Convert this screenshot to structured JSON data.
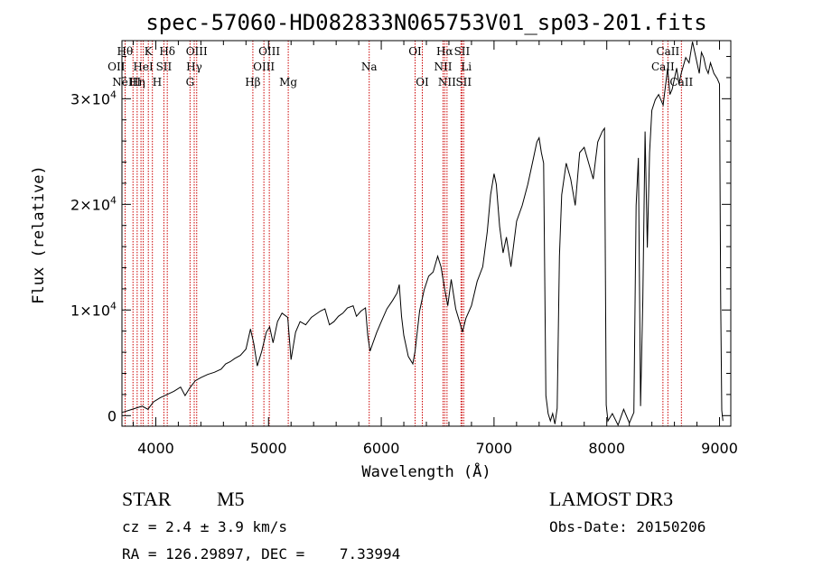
{
  "chart_data": {
    "type": "line",
    "title": "spec-57060-HD082833N065753V01_sp03-201.fits",
    "xlabel": "Wavelength (Å)",
    "ylabel": "Flux (relative)",
    "xlim": [
      3700,
      9100
    ],
    "ylim": [
      -1000,
      35500
    ],
    "x_ticks": [
      {
        "value": 4000,
        "label": "4000"
      },
      {
        "value": 5000,
        "label": "5000"
      },
      {
        "value": 6000,
        "label": "6000"
      },
      {
        "value": 7000,
        "label": "7000"
      },
      {
        "value": 8000,
        "label": "8000"
      },
      {
        "value": 9000,
        "label": "9000"
      }
    ],
    "y_ticks": [
      {
        "value": 0,
        "base": "0",
        "exp": ""
      },
      {
        "value": 10000,
        "base": "1×10",
        "exp": "4"
      },
      {
        "value": 20000,
        "base": "2×10",
        "exp": "4"
      },
      {
        "value": 30000,
        "base": "3×10",
        "exp": "4"
      }
    ],
    "series": [
      {
        "name": "flux",
        "color": "#000000",
        "points": [
          [
            3700,
            300
          ],
          [
            3760,
            500
          ],
          [
            3820,
            700
          ],
          [
            3880,
            900
          ],
          [
            3930,
            600
          ],
          [
            3980,
            1300
          ],
          [
            4040,
            1700
          ],
          [
            4100,
            2000
          ],
          [
            4160,
            2300
          ],
          [
            4220,
            2700
          ],
          [
            4260,
            1900
          ],
          [
            4300,
            2600
          ],
          [
            4350,
            3300
          ],
          [
            4400,
            3600
          ],
          [
            4460,
            3900
          ],
          [
            4520,
            4100
          ],
          [
            4580,
            4400
          ],
          [
            4620,
            4900
          ],
          [
            4660,
            5100
          ],
          [
            4700,
            5400
          ],
          [
            4750,
            5700
          ],
          [
            4800,
            6300
          ],
          [
            4840,
            8200
          ],
          [
            4870,
            6800
          ],
          [
            4900,
            4700
          ],
          [
            4940,
            6100
          ],
          [
            4980,
            7900
          ],
          [
            5010,
            8400
          ],
          [
            5040,
            6900
          ],
          [
            5080,
            8900
          ],
          [
            5120,
            9700
          ],
          [
            5170,
            9300
          ],
          [
            5200,
            5300
          ],
          [
            5240,
            7900
          ],
          [
            5280,
            8900
          ],
          [
            5330,
            8600
          ],
          [
            5380,
            9300
          ],
          [
            5420,
            9600
          ],
          [
            5460,
            9900
          ],
          [
            5500,
            10100
          ],
          [
            5540,
            8600
          ],
          [
            5580,
            8900
          ],
          [
            5620,
            9400
          ],
          [
            5660,
            9700
          ],
          [
            5700,
            10200
          ],
          [
            5750,
            10400
          ],
          [
            5780,
            9400
          ],
          [
            5820,
            9900
          ],
          [
            5860,
            10200
          ],
          [
            5880,
            7600
          ],
          [
            5900,
            6100
          ],
          [
            5920,
            6700
          ],
          [
            5960,
            7900
          ],
          [
            6000,
            8900
          ],
          [
            6050,
            10100
          ],
          [
            6100,
            10900
          ],
          [
            6140,
            11600
          ],
          [
            6160,
            12400
          ],
          [
            6180,
            9400
          ],
          [
            6200,
            7600
          ],
          [
            6240,
            5600
          ],
          [
            6280,
            4900
          ],
          [
            6300,
            6100
          ],
          [
            6340,
            9900
          ],
          [
            6380,
            11900
          ],
          [
            6420,
            13200
          ],
          [
            6460,
            13600
          ],
          [
            6500,
            15100
          ],
          [
            6530,
            14100
          ],
          [
            6560,
            12100
          ],
          [
            6590,
            10400
          ],
          [
            6620,
            12900
          ],
          [
            6660,
            10100
          ],
          [
            6700,
            8700
          ],
          [
            6720,
            7900
          ],
          [
            6750,
            9200
          ],
          [
            6800,
            10400
          ],
          [
            6850,
            12700
          ],
          [
            6900,
            14100
          ],
          [
            6940,
            17400
          ],
          [
            6970,
            20900
          ],
          [
            7000,
            22900
          ],
          [
            7020,
            21900
          ],
          [
            7050,
            17900
          ],
          [
            7080,
            15400
          ],
          [
            7110,
            16900
          ],
          [
            7150,
            14100
          ],
          [
            7200,
            18400
          ],
          [
            7250,
            19900
          ],
          [
            7300,
            21900
          ],
          [
            7350,
            24400
          ],
          [
            7380,
            25900
          ],
          [
            7400,
            26300
          ],
          [
            7420,
            24900
          ],
          [
            7440,
            23900
          ],
          [
            7460,
            1900
          ],
          [
            7480,
            200
          ],
          [
            7500,
            -500
          ],
          [
            7520,
            200
          ],
          [
            7540,
            -800
          ],
          [
            7560,
            700
          ],
          [
            7580,
            15100
          ],
          [
            7600,
            20900
          ],
          [
            7640,
            23900
          ],
          [
            7680,
            22400
          ],
          [
            7720,
            19900
          ],
          [
            7760,
            24900
          ],
          [
            7800,
            25400
          ],
          [
            7840,
            23900
          ],
          [
            7880,
            22400
          ],
          [
            7920,
            25900
          ],
          [
            7960,
            26900
          ],
          [
            7980,
            27200
          ],
          [
            7995,
            1000
          ],
          [
            8010,
            -500
          ],
          [
            8050,
            200
          ],
          [
            8100,
            -900
          ],
          [
            8150,
            600
          ],
          [
            8200,
            -700
          ],
          [
            8240,
            300
          ],
          [
            8260,
            19900
          ],
          [
            8280,
            24400
          ],
          [
            8300,
            900
          ],
          [
            8320,
            10900
          ],
          [
            8340,
            26900
          ],
          [
            8360,
            15900
          ],
          [
            8380,
            24900
          ],
          [
            8400,
            28900
          ],
          [
            8430,
            29900
          ],
          [
            8460,
            30400
          ],
          [
            8500,
            29400
          ],
          [
            8540,
            32900
          ],
          [
            8560,
            30400
          ],
          [
            8580,
            30900
          ],
          [
            8600,
            31900
          ],
          [
            8620,
            32900
          ],
          [
            8640,
            31400
          ],
          [
            8660,
            32400
          ],
          [
            8700,
            33900
          ],
          [
            8730,
            33400
          ],
          [
            8760,
            35400
          ],
          [
            8780,
            34400
          ],
          [
            8800,
            33400
          ],
          [
            8820,
            32400
          ],
          [
            8840,
            34400
          ],
          [
            8860,
            33900
          ],
          [
            8880,
            32900
          ],
          [
            8900,
            32400
          ],
          [
            8920,
            33400
          ],
          [
            8950,
            32400
          ],
          [
            8980,
            31900
          ],
          [
            9000,
            31400
          ],
          [
            9010,
            10900
          ],
          [
            9020,
            500
          ],
          [
            9030,
            -500
          ]
        ]
      }
    ],
    "reference_lines": {
      "color": "#cc0000",
      "lines": [
        {
          "x": 3728,
          "label": "OII",
          "row": 1,
          "anchor": "end"
        },
        {
          "x": 3798,
          "label": "Hθ",
          "row": 0,
          "anchor": "end"
        },
        {
          "x": 3835,
          "label": "Hη",
          "row": 2,
          "anchor": "middle"
        },
        {
          "x": 3869,
          "label": "NeIII",
          "row": 2,
          "anchor": "end"
        },
        {
          "x": 3889,
          "label": "HeI",
          "row": 1,
          "anchor": "middle"
        },
        {
          "x": 3934,
          "label": "K",
          "row": 0,
          "anchor": "middle"
        },
        {
          "x": 3970,
          "label": "H",
          "row": 2,
          "anchor": "start"
        },
        {
          "x": 4072,
          "label": "SII",
          "row": 1,
          "anchor": "middle"
        },
        {
          "x": 4102,
          "label": "Hδ",
          "row": 0,
          "anchor": "middle"
        },
        {
          "x": 4304,
          "label": "G",
          "row": 2,
          "anchor": "middle"
        },
        {
          "x": 4341,
          "label": "Hγ",
          "row": 1,
          "anchor": "middle"
        },
        {
          "x": 4363,
          "label": "OIII",
          "row": 0,
          "anchor": "middle"
        },
        {
          "x": 4861,
          "label": "Hβ",
          "row": 2,
          "anchor": "middle"
        },
        {
          "x": 4959,
          "label": "OIII",
          "row": 1,
          "anchor": "middle"
        },
        {
          "x": 5007,
          "label": "OIII",
          "row": 0,
          "anchor": "middle"
        },
        {
          "x": 5175,
          "label": "Mg",
          "row": 2,
          "anchor": "middle"
        },
        {
          "x": 5893,
          "label": "Na",
          "row": 1,
          "anchor": "middle"
        },
        {
          "x": 6300,
          "label": "OI",
          "row": 0,
          "anchor": "middle"
        },
        {
          "x": 6364,
          "label": "OI",
          "row": 2,
          "anchor": "middle"
        },
        {
          "x": 6548,
          "label": "NII",
          "row": 1,
          "anchor": "middle"
        },
        {
          "x": 6563,
          "label": "Hα",
          "row": 0,
          "anchor": "middle"
        },
        {
          "x": 6583,
          "label": "NII",
          "row": 2,
          "anchor": "middle"
        },
        {
          "x": 6707,
          "label": "Li",
          "row": 1,
          "anchor": "start"
        },
        {
          "x": 6716,
          "label": "SII",
          "row": 0,
          "anchor": "middle"
        },
        {
          "x": 6731,
          "label": "SII",
          "row": 2,
          "anchor": "middle"
        },
        {
          "x": 8498,
          "label": "CaII",
          "row": 1,
          "anchor": "middle"
        },
        {
          "x": 8542,
          "label": "CaII",
          "row": 0,
          "anchor": "middle"
        },
        {
          "x": 8662,
          "label": "CaII",
          "row": 2,
          "anchor": "middle"
        }
      ]
    }
  },
  "info": {
    "class": "STAR",
    "subclass": "M5",
    "survey": "LAMOST DR3",
    "redshift": "cz = 2.4 ± 3.9 km/s",
    "obs_date": "Obs-Date: 20150206",
    "coords": "RA = 126.29897, DEC =    7.33994"
  }
}
